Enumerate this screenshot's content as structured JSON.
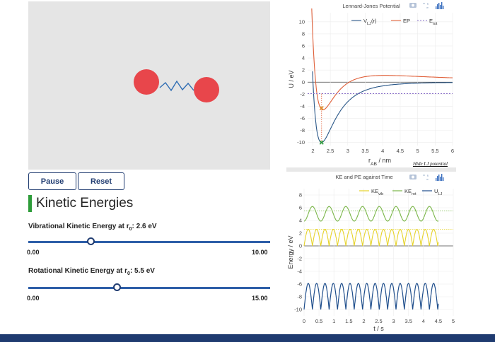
{
  "controls": {
    "pause_label": "Pause",
    "reset_label": "Reset"
  },
  "section_title": "Kinetic Energies",
  "sliders": [
    {
      "label_prefix": "Vibrational Kinetic Energy at r",
      "label_sub": "0",
      "label_suffix": ": 2.6 eV",
      "min_label": "0.00",
      "max_label": "10.00",
      "min": 0,
      "max": 10,
      "value": 2.6
    },
    {
      "label_prefix": "Rotational Kinetic Energy at r",
      "label_sub": "0",
      "label_suffix": ": 5.5 eV",
      "min_label": "0.00",
      "max_label": "15.00",
      "min": 0,
      "max": 15,
      "value": 5.5
    }
  ],
  "hide_lj_link": "Hide LJ potential",
  "icons": [
    "camera-icon",
    "autoscale-icon",
    "plotly-logo-icon"
  ],
  "colors": {
    "atom": "#e8464b",
    "spring": "#2f6db3",
    "accent_green": "#2e9c3a",
    "navy": "#1f3b70"
  },
  "chart_data": [
    {
      "type": "line",
      "title": "Lennard-Jones Potential",
      "xlabel": "r_AB / nm",
      "ylabel": "U / eV",
      "xlim": [
        1.85,
        6
      ],
      "ylim": [
        -10.5,
        11.5
      ],
      "x_ticks": [
        "2",
        "2.5",
        "3",
        "3.5",
        "4",
        "4.5",
        "5",
        "5.5",
        "6"
      ],
      "y_ticks": [
        "-10",
        "-8",
        "-6",
        "-4",
        "-2",
        "0",
        "2",
        "4",
        "6",
        "8",
        "10"
      ],
      "legend_position": "top-right",
      "series": [
        {
          "name": "V_LJ(r)",
          "color": "#2a5788",
          "epsilon": 10,
          "sigma": 2.004,
          "r_start": 1.99
        },
        {
          "name": "EP",
          "color": "#e0603a",
          "epsilon": 10,
          "sigma": 2.004,
          "centrifugal": 5.5,
          "r0": 2.25,
          "r_start": 1.85
        },
        {
          "name": "E_tot",
          "color": "#8a70c8",
          "dash": true,
          "value": -1.9
        }
      ],
      "markers": [
        {
          "name": "current-ep-marker",
          "x": 2.25,
          "y": -4.3,
          "color": "#e0902a"
        },
        {
          "name": "current-vlj-marker",
          "x": 2.25,
          "y": -10,
          "color": "#2e9c3a"
        }
      ]
    },
    {
      "type": "line",
      "title": "KE and PE against Time",
      "xlabel": "t / s",
      "ylabel": "Energy / eV",
      "xlim": [
        0,
        5
      ],
      "ylim": [
        -11,
        9
      ],
      "x_ticks": [
        "0",
        "0.5",
        "1",
        "1.5",
        "2",
        "2.5",
        "3",
        "3.5",
        "4",
        "4.5",
        "5"
      ],
      "y_ticks": [
        "-10",
        "-8",
        "-6",
        "-4",
        "-2",
        "0",
        "2",
        "4",
        "6",
        "8"
      ],
      "legend_position": "top-right",
      "t_end": 4.5,
      "series": [
        {
          "name": "KE_vib",
          "color": "#e6d32a",
          "min": 0,
          "max": 2.6,
          "period": 0.56,
          "ref": 2.6
        },
        {
          "name": "KE_rot",
          "color": "#7ab648",
          "min": 3.9,
          "max": 6.2,
          "period": 0.56,
          "ref": 5.5
        },
        {
          "name": "U_LJ",
          "color": "#1f4e8c",
          "min": -10,
          "max": -5.9,
          "period": 0.56
        }
      ]
    }
  ]
}
